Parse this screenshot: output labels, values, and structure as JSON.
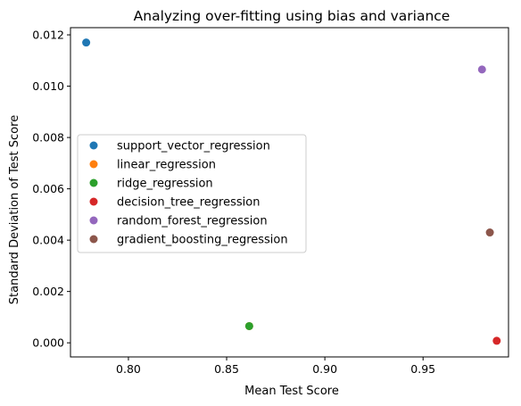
{
  "chart_data": {
    "type": "scatter",
    "title": "Analyzing over-fitting using bias and variance",
    "xlabel": "Mean Test Score",
    "ylabel": "Standard Deviation of Test Score",
    "xlim": [
      0.7705,
      0.9935
    ],
    "ylim": [
      -0.00055,
      0.01228
    ],
    "xticks": [
      "0.80",
      "0.85",
      "0.90",
      "0.95"
    ],
    "xtick_values": [
      0.8,
      0.85,
      0.9,
      0.95
    ],
    "yticks": [
      "0.000",
      "0.002",
      "0.004",
      "0.006",
      "0.008",
      "0.010",
      "0.012"
    ],
    "ytick_values": [
      0.0,
      0.002,
      0.004,
      0.006,
      0.008,
      0.01,
      0.012
    ],
    "grid": false,
    "legend_position": "center-left",
    "series": [
      {
        "name": "support_vector_regression",
        "color": "#1f77b4",
        "x": [
          0.7785
        ],
        "y": [
          0.0117
        ]
      },
      {
        "name": "linear_regression",
        "color": "#ff7f0e",
        "x": [
          0.8615
        ],
        "y": [
          0.00065
        ]
      },
      {
        "name": "ridge_regression",
        "color": "#2ca02c",
        "x": [
          0.8615
        ],
        "y": [
          0.00065
        ]
      },
      {
        "name": "decision_tree_regression",
        "color": "#d62728",
        "x": [
          0.9875
        ],
        "y": [
          8e-05
        ]
      },
      {
        "name": "random_forest_regression",
        "color": "#9467bd",
        "x": [
          0.98
        ],
        "y": [
          0.01065
        ]
      },
      {
        "name": "gradient_boosting_regression",
        "color": "#8c564b",
        "x": [
          0.984
        ],
        "y": [
          0.0043
        ]
      }
    ]
  }
}
